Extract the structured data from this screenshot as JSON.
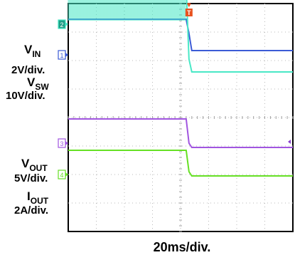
{
  "chart_data": {
    "type": "line",
    "title": "",
    "xlabel": "20ms/div.",
    "ylabel": "",
    "x_divisions": 8,
    "y_divisions": 8,
    "x": [
      0,
      4.2,
      4.3,
      4.4,
      8
    ],
    "series": [
      {
        "name": "V_IN",
        "scale": "2V/div.",
        "channel": "1",
        "color": "#3b5bd6",
        "values": [
          0.55,
          0.55,
          1.05,
          1.65,
          1.65
        ],
        "marker_level": 1.65
      },
      {
        "name": "V_SW",
        "scale": "10V/div.",
        "channel": "2",
        "color": "#49e8c6",
        "switching": true,
        "values": [
          0.6,
          0.6,
          1.95,
          2.4,
          2.4
        ],
        "marker_level": 2.4
      },
      {
        "name": "V_OUT",
        "scale": "5V/div.",
        "channel": "3",
        "color": "#a155e0",
        "values": [
          4.05,
          4.05,
          4.9,
          5.05,
          5.05
        ],
        "marker_level": 5.05
      },
      {
        "name": "I_OUT",
        "scale": "2A/div.",
        "channel": "4",
        "color": "#66e024",
        "values": [
          5.15,
          5.15,
          5.9,
          6.05,
          6.05
        ],
        "marker_level": 6.05
      }
    ],
    "trigger": {
      "label": "T",
      "x_div": 4.3,
      "color": "#e8521f"
    },
    "ch3_right_marker_color": "#8a3fd0"
  },
  "labels": {
    "vin": {
      "main": "V",
      "sub": "IN",
      "scale": "2V/div."
    },
    "vsw": {
      "main": "V",
      "sub": "SW",
      "scale": "10V/div."
    },
    "vout": {
      "main": "V",
      "sub": "OUT",
      "scale": "5V/div."
    },
    "iout": {
      "main": "I",
      "sub": "OUT",
      "scale": "2A/div."
    }
  },
  "timebase": "20ms/div."
}
